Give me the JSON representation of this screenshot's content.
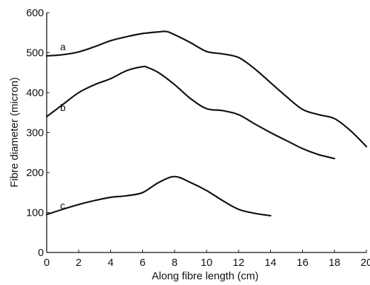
{
  "chart_data": {
    "type": "line",
    "title": "",
    "xlabel": "Along fibre length (cm)",
    "ylabel": "Fibre diameter (micron)",
    "xlim": [
      0,
      20
    ],
    "ylim": [
      0,
      600
    ],
    "xticks": [
      0,
      2,
      4,
      6,
      8,
      10,
      12,
      14,
      16,
      18,
      20
    ],
    "yticks": [
      0,
      100,
      200,
      300,
      400,
      500,
      600
    ],
    "grid": false,
    "legend": "none",
    "line_color": "#111111",
    "series": [
      {
        "name": "a",
        "x": [
          0,
          1,
          2,
          3,
          4,
          5,
          6,
          7,
          7.5,
          8,
          9,
          10,
          11,
          12,
          13,
          14,
          15,
          16,
          17,
          18,
          19,
          20
        ],
        "y": [
          492,
          495,
          502,
          515,
          530,
          540,
          548,
          552,
          553,
          545,
          525,
          503,
          497,
          488,
          460,
          425,
          390,
          358,
          345,
          335,
          305,
          265
        ]
      },
      {
        "name": "b",
        "x": [
          0,
          1,
          2,
          3,
          4,
          5,
          6,
          6.3,
          7,
          8,
          9,
          10,
          11,
          12,
          13,
          14,
          15,
          16,
          17,
          18
        ],
        "y": [
          340,
          370,
          400,
          420,
          435,
          455,
          465,
          463,
          450,
          420,
          385,
          360,
          355,
          345,
          322,
          300,
          280,
          260,
          245,
          235
        ]
      },
      {
        "name": "c",
        "x": [
          0,
          1,
          2,
          3,
          4,
          5,
          6,
          7,
          8,
          9,
          10,
          11,
          12,
          13,
          14
        ],
        "y": [
          95,
          108,
          120,
          130,
          138,
          142,
          150,
          175,
          190,
          175,
          155,
          130,
          108,
          98,
          92
        ]
      }
    ]
  }
}
